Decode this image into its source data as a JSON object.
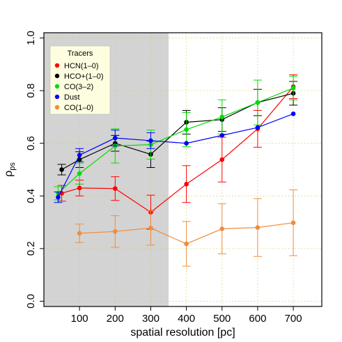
{
  "chart_data": {
    "type": "line",
    "xlabel": "spatial resolution [pc]",
    "ylabel_main": "ρ",
    "ylabel_sub": "ps",
    "xlim": [
      0,
      780
    ],
    "ylim": [
      -0.02,
      1.02
    ],
    "x_ticks": [
      100,
      200,
      300,
      400,
      500,
      600,
      700
    ],
    "y_ticks": [
      0.0,
      0.2,
      0.4,
      0.6,
      0.8,
      1.0
    ],
    "y_tick_labels": [
      "0.0",
      "0.2",
      "0.4",
      "0.6",
      "0.8",
      "1.0"
    ],
    "grid": true,
    "shaded_region": {
      "x_from": 0,
      "x_to": 350,
      "color": "#d3d3d3"
    },
    "legend": {
      "title": "Tracers",
      "placement": "top-left",
      "background": "#fffde0"
    },
    "series": [
      {
        "name": "HCN(1–0)",
        "color": "#ff0000",
        "points": [
          {
            "x": 50,
            "y": 0.41,
            "err": 0.03
          },
          {
            "x": 100,
            "y": 0.43,
            "err": 0.03
          },
          {
            "x": 200,
            "y": 0.428,
            "err": 0.045
          },
          {
            "x": 300,
            "y": 0.338,
            "err": 0.065
          },
          {
            "x": 400,
            "y": 0.445,
            "err": 0.07
          },
          {
            "x": 500,
            "y": 0.538,
            "err": 0.085
          },
          {
            "x": 600,
            "y": 0.655,
            "err": 0.07
          },
          {
            "x": 700,
            "y": 0.815,
            "err": 0.045
          }
        ]
      },
      {
        "name": "HCO+(1–0)",
        "color": "#000000",
        "points": [
          {
            "x": 50,
            "y": 0.5,
            "err": 0.02
          },
          {
            "x": 100,
            "y": 0.538,
            "err": 0.03
          },
          {
            "x": 200,
            "y": 0.6,
            "err": 0.03
          },
          {
            "x": 300,
            "y": 0.558,
            "err": 0.05
          },
          {
            "x": 400,
            "y": 0.68,
            "err": 0.045
          },
          {
            "x": 500,
            "y": 0.69,
            "err": 0.045
          },
          {
            "x": 600,
            "y": 0.755,
            "err": 0.05
          },
          {
            "x": 700,
            "y": 0.79,
            "err": 0.045
          }
        ]
      },
      {
        "name": "CO(3–2)",
        "color": "#00dd00",
        "points": [
          {
            "x": 40,
            "y": 0.41,
            "err": 0.025
          },
          {
            "x": 100,
            "y": 0.485,
            "err": 0.04
          },
          {
            "x": 200,
            "y": 0.59,
            "err": 0.065
          },
          {
            "x": 300,
            "y": 0.595,
            "err": 0.055
          },
          {
            "x": 400,
            "y": 0.652,
            "err": 0.065
          },
          {
            "x": 500,
            "y": 0.7,
            "err": 0.065
          },
          {
            "x": 600,
            "y": 0.755,
            "err": 0.085
          },
          {
            "x": 700,
            "y": 0.81,
            "err": 0.045
          }
        ]
      },
      {
        "name": "Dust",
        "color": "#0000ff",
        "points": [
          {
            "x": 40,
            "y": 0.395,
            "err": 0.02
          },
          {
            "x": 100,
            "y": 0.555,
            "err": 0.025
          },
          {
            "x": 200,
            "y": 0.62,
            "err": 0.03
          },
          {
            "x": 300,
            "y": 0.61,
            "err": 0.03
          },
          {
            "x": 400,
            "y": 0.6,
            "err": 0.0
          },
          {
            "x": 500,
            "y": 0.63,
            "err": 0.0
          },
          {
            "x": 600,
            "y": 0.66,
            "err": 0.0
          },
          {
            "x": 700,
            "y": 0.712,
            "err": 0.0
          }
        ]
      },
      {
        "name": "CO(1–0)",
        "color": "#f08c3c",
        "points": [
          {
            "x": 100,
            "y": 0.258,
            "err": 0.035
          },
          {
            "x": 200,
            "y": 0.265,
            "err": 0.06
          },
          {
            "x": 300,
            "y": 0.278,
            "err": 0.065
          },
          {
            "x": 400,
            "y": 0.218,
            "err": 0.085
          },
          {
            "x": 500,
            "y": 0.275,
            "err": 0.095
          },
          {
            "x": 600,
            "y": 0.28,
            "err": 0.11
          },
          {
            "x": 700,
            "y": 0.298,
            "err": 0.125
          }
        ]
      }
    ]
  }
}
